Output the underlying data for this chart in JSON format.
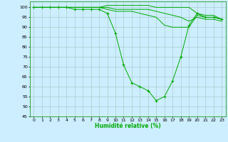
{
  "xlabel": "Humidité relative (%)",
  "bg_color": "#cceeff",
  "grid_color": "#aacccc",
  "line_color": "#00aa00",
  "xlim": [
    -0.5,
    23.5
  ],
  "ylim": [
    45,
    103
  ],
  "yticks": [
    45,
    50,
    55,
    60,
    65,
    70,
    75,
    80,
    85,
    90,
    95,
    100
  ],
  "xticks": [
    0,
    1,
    2,
    3,
    4,
    5,
    6,
    7,
    8,
    9,
    10,
    11,
    12,
    13,
    14,
    15,
    16,
    17,
    18,
    19,
    20,
    21,
    22,
    23
  ],
  "series": [
    [
      100,
      100,
      100,
      100,
      100,
      100,
      100,
      100,
      100,
      101,
      101,
      101,
      101,
      101,
      101,
      100,
      100,
      100,
      100,
      100,
      97,
      96,
      96,
      94
    ],
    [
      100,
      100,
      100,
      100,
      100,
      100,
      100,
      100,
      100,
      100,
      99,
      99,
      99,
      99,
      99,
      98,
      97,
      96,
      95,
      93,
      95,
      94,
      94,
      93
    ],
    [
      100,
      100,
      100,
      100,
      100,
      100,
      100,
      100,
      100,
      99,
      98,
      98,
      98,
      97,
      96,
      95,
      91,
      90,
      90,
      90,
      96,
      95,
      95,
      94
    ],
    [
      100,
      100,
      100,
      100,
      100,
      99,
      99,
      99,
      99,
      97,
      87,
      71,
      62,
      60,
      58,
      53,
      55,
      63,
      75,
      91,
      97,
      95,
      95,
      94
    ]
  ]
}
